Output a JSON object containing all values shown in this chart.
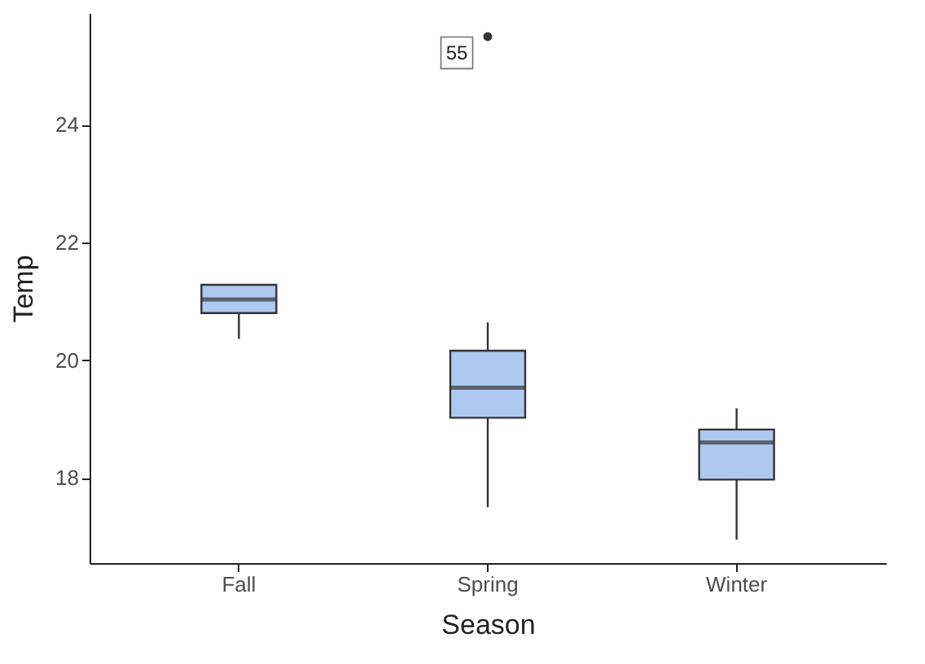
{
  "chart_data": {
    "type": "box",
    "xlabel": "Season",
    "ylabel": "Temp",
    "categories": [
      "Fall",
      "Spring",
      "Winter"
    ],
    "series": [
      {
        "color": "#aec8f0",
        "boxes": [
          {
            "low": 20.36,
            "q1": 20.8,
            "median": 21.03,
            "q3": 21.28,
            "high": 21.28
          },
          {
            "low": 17.5,
            "q1": 19.02,
            "median": 19.53,
            "q3": 20.16,
            "high": 20.64,
            "outliers": [
              25.5
            ]
          },
          {
            "low": 16.95,
            "q1": 17.97,
            "median": 18.6,
            "q3": 18.82,
            "high": 19.18
          }
        ]
      }
    ],
    "annotations": [
      "55"
    ],
    "ylim": [
      16.55,
      25.9
    ],
    "yticks": [
      18,
      20,
      22,
      24
    ],
    "grid": false
  }
}
